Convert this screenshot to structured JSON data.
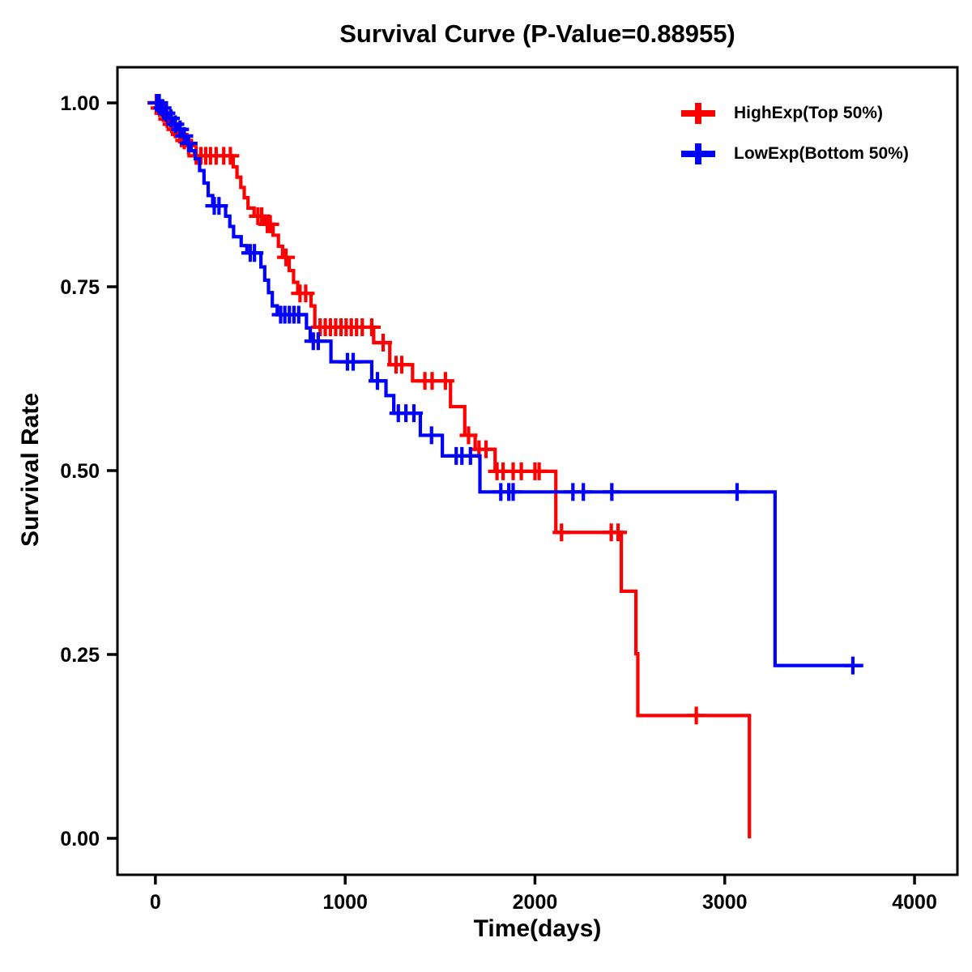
{
  "chart_data": {
    "type": "line",
    "subtype": "kaplan-meier-step-survival",
    "title": "Survival Curve (P-Value=0.88955)",
    "p_value": "0.88955",
    "xlabel": "Time(days)",
    "ylabel": "Survival Rate",
    "x_ticks": [
      0,
      1000,
      2000,
      3000,
      4000
    ],
    "y_ticks": [
      0.0,
      0.25,
      0.5,
      0.75,
      1.0
    ],
    "y_tick_labels": [
      "0.00",
      "0.25",
      "0.50",
      "0.75",
      "1.00"
    ],
    "xlim": [
      -200,
      4226
    ],
    "ylim": [
      -0.0496,
      1.0485
    ],
    "grid": false,
    "legend_position": "top-right",
    "series": [
      {
        "key": "high-exp",
        "name": "HighExp(Top 50%)",
        "color": "#FF0000",
        "end_time": 3130,
        "steps": [
          [
            0,
            1.0
          ],
          [
            18,
            0.993
          ],
          [
            36,
            0.986
          ],
          [
            55,
            0.978
          ],
          [
            75,
            0.971
          ],
          [
            95,
            0.964
          ],
          [
            118,
            0.957
          ],
          [
            140,
            0.949
          ],
          [
            165,
            0.942
          ],
          [
            185,
            0.935
          ],
          [
            205,
            0.928
          ],
          [
            410,
            0.913
          ],
          [
            430,
            0.899
          ],
          [
            450,
            0.885
          ],
          [
            468,
            0.871
          ],
          [
            488,
            0.857
          ],
          [
            520,
            0.846
          ],
          [
            575,
            0.835
          ],
          [
            620,
            0.82
          ],
          [
            648,
            0.805
          ],
          [
            670,
            0.79
          ],
          [
            705,
            0.772
          ],
          [
            728,
            0.756
          ],
          [
            750,
            0.741
          ],
          [
            820,
            0.724
          ],
          [
            840,
            0.695
          ],
          [
            1150,
            0.674
          ],
          [
            1235,
            0.644
          ],
          [
            1355,
            0.622
          ],
          [
            1555,
            0.587
          ],
          [
            1630,
            0.548
          ],
          [
            1685,
            0.529
          ],
          [
            1790,
            0.499
          ],
          [
            2110,
            0.416
          ],
          [
            2455,
            0.336
          ],
          [
            2532,
            0.251
          ],
          [
            2542,
            0.167
          ],
          [
            3130,
            0.0
          ]
        ],
        "censors": [
          [
            5,
            1.0
          ],
          [
            22,
            0.993
          ],
          [
            42,
            0.986
          ],
          [
            62,
            0.978
          ],
          [
            85,
            0.971
          ],
          [
            105,
            0.964
          ],
          [
            128,
            0.957
          ],
          [
            152,
            0.949
          ],
          [
            175,
            0.942
          ],
          [
            215,
            0.928
          ],
          [
            240,
            0.928
          ],
          [
            265,
            0.928
          ],
          [
            290,
            0.928
          ],
          [
            320,
            0.928
          ],
          [
            360,
            0.928
          ],
          [
            395,
            0.928
          ],
          [
            540,
            0.846
          ],
          [
            560,
            0.846
          ],
          [
            590,
            0.835
          ],
          [
            605,
            0.835
          ],
          [
            688,
            0.79
          ],
          [
            762,
            0.741
          ],
          [
            792,
            0.741
          ],
          [
            868,
            0.695
          ],
          [
            895,
            0.695
          ],
          [
            922,
            0.695
          ],
          [
            950,
            0.695
          ],
          [
            978,
            0.695
          ],
          [
            1005,
            0.695
          ],
          [
            1032,
            0.695
          ],
          [
            1060,
            0.695
          ],
          [
            1090,
            0.695
          ],
          [
            1140,
            0.695
          ],
          [
            1200,
            0.674
          ],
          [
            1268,
            0.644
          ],
          [
            1298,
            0.644
          ],
          [
            1420,
            0.622
          ],
          [
            1458,
            0.622
          ],
          [
            1528,
            0.622
          ],
          [
            1650,
            0.548
          ],
          [
            1705,
            0.529
          ],
          [
            1742,
            0.529
          ],
          [
            1800,
            0.499
          ],
          [
            1832,
            0.499
          ],
          [
            1885,
            0.499
          ],
          [
            1928,
            0.499
          ],
          [
            2000,
            0.499
          ],
          [
            2022,
            0.499
          ],
          [
            2140,
            0.416
          ],
          [
            2402,
            0.416
          ],
          [
            2438,
            0.416
          ],
          [
            2850,
            0.167
          ]
        ]
      },
      {
        "key": "low-exp",
        "name": "LowExp(Bottom 50%)",
        "color": "#0000FF",
        "end_time": 3730,
        "steps": [
          [
            0,
            1.0
          ],
          [
            28,
            0.993
          ],
          [
            52,
            0.986
          ],
          [
            75,
            0.979
          ],
          [
            98,
            0.971
          ],
          [
            120,
            0.964
          ],
          [
            143,
            0.955
          ],
          [
            165,
            0.945
          ],
          [
            188,
            0.935
          ],
          [
            210,
            0.924
          ],
          [
            233,
            0.908
          ],
          [
            256,
            0.891
          ],
          [
            278,
            0.874
          ],
          [
            302,
            0.86
          ],
          [
            370,
            0.846
          ],
          [
            392,
            0.832
          ],
          [
            412,
            0.818
          ],
          [
            452,
            0.806
          ],
          [
            482,
            0.796
          ],
          [
            556,
            0.777
          ],
          [
            576,
            0.759
          ],
          [
            596,
            0.742
          ],
          [
            616,
            0.724
          ],
          [
            642,
            0.712
          ],
          [
            796,
            0.694
          ],
          [
            816,
            0.676
          ],
          [
            925,
            0.648
          ],
          [
            1140,
            0.622
          ],
          [
            1215,
            0.602
          ],
          [
            1256,
            0.578
          ],
          [
            1396,
            0.548
          ],
          [
            1512,
            0.52
          ],
          [
            1710,
            0.471
          ],
          [
            3265,
            0.235
          ]
        ],
        "censors": [
          [
            8,
            1.0
          ],
          [
            20,
            1.0
          ],
          [
            38,
            0.993
          ],
          [
            58,
            0.986
          ],
          [
            82,
            0.979
          ],
          [
            105,
            0.971
          ],
          [
            130,
            0.964
          ],
          [
            152,
            0.955
          ],
          [
            175,
            0.945
          ],
          [
            310,
            0.86
          ],
          [
            335,
            0.86
          ],
          [
            500,
            0.796
          ],
          [
            522,
            0.796
          ],
          [
            660,
            0.712
          ],
          [
            682,
            0.712
          ],
          [
            706,
            0.712
          ],
          [
            730,
            0.712
          ],
          [
            755,
            0.712
          ],
          [
            832,
            0.676
          ],
          [
            858,
            0.676
          ],
          [
            1012,
            0.648
          ],
          [
            1042,
            0.648
          ],
          [
            1170,
            0.622
          ],
          [
            1280,
            0.578
          ],
          [
            1320,
            0.578
          ],
          [
            1362,
            0.578
          ],
          [
            1455,
            0.548
          ],
          [
            1585,
            0.52
          ],
          [
            1615,
            0.52
          ],
          [
            1660,
            0.52
          ],
          [
            1820,
            0.471
          ],
          [
            1862,
            0.471
          ],
          [
            1885,
            0.471
          ],
          [
            2200,
            0.471
          ],
          [
            2255,
            0.471
          ],
          [
            2405,
            0.471
          ],
          [
            3065,
            0.471
          ],
          [
            3675,
            0.235
          ]
        ]
      }
    ]
  }
}
